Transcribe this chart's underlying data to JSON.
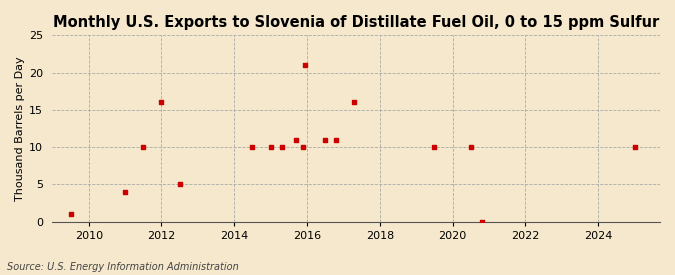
{
  "title": "Monthly U.S. Exports to Slovenia of Distillate Fuel Oil, 0 to 15 ppm Sulfur",
  "ylabel": "Thousand Barrels per Day",
  "source": "Source: U.S. Energy Information Administration",
  "background_color": "#f5e8cc",
  "marker_color": "#cc0000",
  "xlim": [
    2009.0,
    2025.7
  ],
  "ylim": [
    0,
    25
  ],
  "xticks": [
    2010,
    2012,
    2014,
    2016,
    2018,
    2020,
    2022,
    2024
  ],
  "yticks": [
    0,
    5,
    10,
    15,
    20,
    25
  ],
  "data_x": [
    2009.5,
    2011.0,
    2011.5,
    2012.0,
    2012.5,
    2014.5,
    2015.0,
    2015.3,
    2015.7,
    2015.9,
    2015.95,
    2016.5,
    2016.8,
    2017.3,
    2019.5,
    2020.5,
    2020.8,
    2025.0
  ],
  "data_y": [
    1,
    4,
    10,
    16,
    5,
    10,
    10,
    10,
    11,
    10,
    21,
    11,
    11,
    16,
    10,
    10,
    0,
    10
  ],
  "title_fontsize": 10.5,
  "ylabel_fontsize": 8,
  "tick_fontsize": 8,
  "source_fontsize": 7
}
